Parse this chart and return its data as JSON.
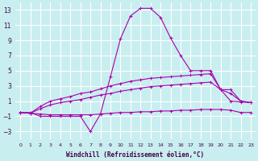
{
  "xlabel": "Windchill (Refroidissement éolien,°C)",
  "background_color": "#c8eef0",
  "grid_color": "#ffffff",
  "line_color": "#aa00aa",
  "xlim": [
    -0.5,
    23.5
  ],
  "ylim": [
    -4,
    14
  ],
  "yticks": [
    -3,
    -1,
    1,
    3,
    5,
    7,
    9,
    11,
    13
  ],
  "xticks": [
    0,
    1,
    2,
    3,
    4,
    5,
    6,
    7,
    8,
    9,
    10,
    11,
    12,
    13,
    14,
    15,
    16,
    17,
    18,
    19,
    20,
    21,
    22,
    23
  ],
  "curve_main_x": [
    0,
    1,
    2,
    3,
    4,
    5,
    6,
    7,
    8,
    9,
    10,
    11,
    12,
    13,
    14,
    15,
    16,
    17,
    18,
    19,
    20,
    21,
    22,
    23
  ],
  "curve_main_y": [
    -0.5,
    -0.5,
    -1.0,
    -1.0,
    -1.0,
    -1.0,
    -1.0,
    -3.0,
    -0.7,
    4.2,
    9.2,
    12.2,
    13.2,
    13.2,
    12.0,
    9.3,
    7.0,
    5.0,
    5.0,
    5.0,
    2.5,
    1.0,
    0.9,
    0.8
  ],
  "curve_upper_x": [
    0,
    1,
    2,
    3,
    4,
    5,
    6,
    7,
    8,
    9,
    10,
    11,
    12,
    13,
    14,
    15,
    16,
    17,
    18,
    19,
    20,
    21,
    22,
    23
  ],
  "curve_upper_y": [
    -0.5,
    -0.6,
    0.3,
    1.0,
    1.3,
    1.6,
    2.0,
    2.2,
    2.6,
    3.0,
    3.3,
    3.6,
    3.8,
    4.0,
    4.1,
    4.2,
    4.3,
    4.4,
    4.5,
    4.6,
    2.5,
    2.5,
    1.0,
    0.8
  ],
  "curve_mid_x": [
    0,
    1,
    2,
    3,
    4,
    5,
    6,
    7,
    8,
    9,
    10,
    11,
    12,
    13,
    14,
    15,
    16,
    17,
    18,
    19,
    20,
    21,
    22,
    23
  ],
  "curve_mid_y": [
    -0.5,
    -0.6,
    0.0,
    0.5,
    0.8,
    1.0,
    1.2,
    1.5,
    1.8,
    2.0,
    2.3,
    2.5,
    2.7,
    2.9,
    3.0,
    3.1,
    3.2,
    3.3,
    3.4,
    3.5,
    2.5,
    2.0,
    1.0,
    0.8
  ],
  "curve_flat_x": [
    0,
    1,
    2,
    3,
    4,
    5,
    6,
    7,
    8,
    9,
    10,
    11,
    12,
    13,
    14,
    15,
    16,
    17,
    18,
    19,
    20,
    21,
    22,
    23
  ],
  "curve_flat_y": [
    -0.5,
    -0.6,
    -0.7,
    -0.8,
    -0.8,
    -0.8,
    -0.8,
    -0.8,
    -0.7,
    -0.6,
    -0.5,
    -0.5,
    -0.4,
    -0.4,
    -0.3,
    -0.3,
    -0.2,
    -0.2,
    -0.1,
    -0.1,
    -0.1,
    -0.2,
    -0.5,
    -0.5
  ]
}
